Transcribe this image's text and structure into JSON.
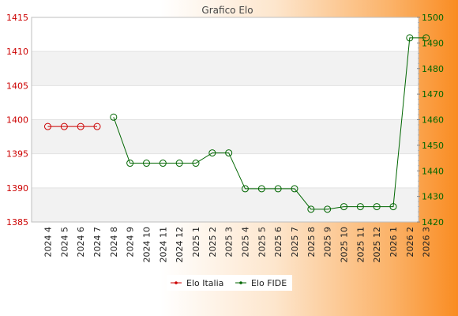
{
  "chart_data": {
    "type": "line",
    "title": "Grafico Elo",
    "categories": [
      "2024 4",
      "2024 5",
      "2024 6",
      "2024 7",
      "2024 8",
      "2024 9",
      "2024 10",
      "2024 11",
      "2024 12",
      "2025 1",
      "2025 2",
      "2025 3",
      "2025 4",
      "2025 5",
      "2025 6",
      "2025 7",
      "2025 8",
      "2025 9",
      "2025 10",
      "2025 11",
      "2025 12",
      "2026 1",
      "2026 2",
      "2026 3"
    ],
    "y_left": {
      "lim": [
        1385,
        1415
      ],
      "ticks": [
        1385,
        1390,
        1395,
        1400,
        1405,
        1410,
        1415
      ],
      "color": "#cc0000"
    },
    "y_right": {
      "lim": [
        1420,
        1500
      ],
      "ticks": [
        1420,
        1430,
        1440,
        1450,
        1460,
        1470,
        1480,
        1490,
        1500
      ],
      "color": "#006600"
    },
    "series": [
      {
        "name": "Elo Italia",
        "axis": "left",
        "color": "#cc0000",
        "values": [
          1399,
          1399,
          1399,
          1399,
          null,
          null,
          null,
          null,
          null,
          null,
          null,
          null,
          null,
          null,
          null,
          null,
          null,
          null,
          null,
          null,
          null,
          null,
          null,
          null
        ]
      },
      {
        "name": "Elo FIDE",
        "axis": "right",
        "color": "#006600",
        "values": [
          null,
          null,
          null,
          null,
          1461,
          1443,
          1443,
          1443,
          1443,
          1443,
          1447,
          1447,
          1433,
          1433,
          1433,
          1433,
          1425,
          1425,
          1426,
          1426,
          1426,
          1426,
          1492,
          1492
        ]
      }
    ],
    "grid": "horizontal bands",
    "legend_position": "bottom"
  }
}
